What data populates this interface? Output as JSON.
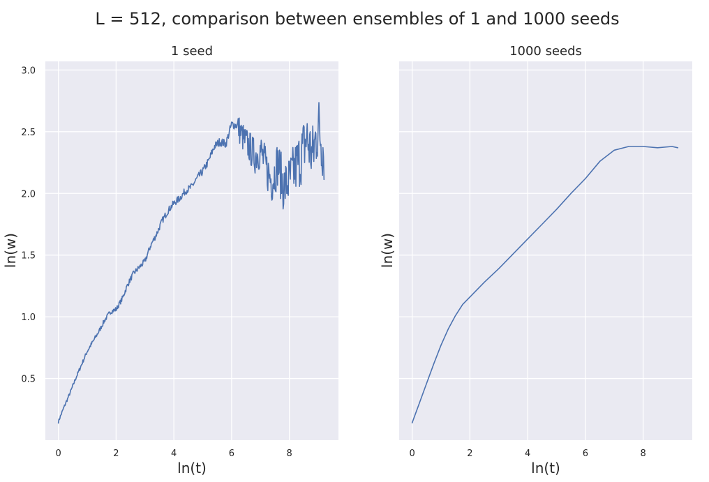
{
  "figure": {
    "title": "L = 512, comparison between ensembles of 1 and 1000 seeds"
  },
  "colors": {
    "background": "#ffffff",
    "plot_background": "#eaeaf2",
    "grid": "#ffffff",
    "line": "#4c72b0",
    "text": "#262626"
  },
  "chart_data": [
    {
      "type": "line",
      "title": "1 seed",
      "xlabel": "ln(t)",
      "ylabel": "ln(w)",
      "xlim": [
        -0.45,
        9.7
      ],
      "ylim": [
        0.0,
        3.07
      ],
      "xticks": [
        0,
        2,
        4,
        6,
        8
      ],
      "xtick_labels": [
        "0",
        "2",
        "4",
        "6",
        "8"
      ],
      "yticks": [
        0.5,
        1.0,
        1.5,
        2.0,
        2.5,
        3.0
      ],
      "ytick_labels": [
        "0.5",
        "1.0",
        "1.5",
        "2.0",
        "2.5",
        "3.0"
      ],
      "grid": true,
      "series": [
        {
          "color": "#4c72b0",
          "noisy": true,
          "x": [
            0.0,
            0.2,
            0.4,
            0.6,
            0.8,
            1.0,
            1.2,
            1.4,
            1.6,
            1.8,
            2.0,
            2.2,
            2.4,
            2.6,
            2.8,
            3.0,
            3.2,
            3.4,
            3.6,
            3.8,
            4.0,
            4.2,
            4.4,
            4.6,
            4.8,
            5.0,
            5.2,
            5.4,
            5.6,
            5.8,
            6.0,
            6.2,
            6.4,
            6.6,
            6.8,
            7.0,
            7.2,
            7.4,
            7.6,
            7.8,
            8.0,
            8.2,
            8.4,
            8.6,
            8.8,
            9.0,
            9.2
          ],
          "y": [
            0.15,
            0.27,
            0.38,
            0.5,
            0.61,
            0.72,
            0.8,
            0.88,
            0.97,
            1.04,
            1.06,
            1.14,
            1.26,
            1.35,
            1.4,
            1.45,
            1.58,
            1.67,
            1.78,
            1.86,
            1.92,
            1.96,
            2.02,
            2.05,
            2.12,
            2.18,
            2.26,
            2.38,
            2.42,
            2.4,
            2.56,
            2.55,
            2.45,
            2.38,
            2.3,
            2.35,
            2.2,
            2.1,
            2.25,
            2.05,
            2.1,
            2.2,
            2.3,
            2.45,
            2.3,
            2.55,
            2.35
          ]
        }
      ]
    },
    {
      "type": "line",
      "title": "1000 seeds",
      "xlabel": "ln(t)",
      "ylabel": "ln(w)",
      "xlim": [
        -0.45,
        9.7
      ],
      "ylim": [
        0.0,
        3.07
      ],
      "xticks": [
        0,
        2,
        4,
        6,
        8
      ],
      "xtick_labels": [
        "0",
        "2",
        "4",
        "6",
        "8"
      ],
      "yticks": [
        0.5,
        1.0,
        1.5,
        2.0,
        2.5,
        3.0
      ],
      "ytick_labels": [],
      "grid": true,
      "series": [
        {
          "color": "#4c72b0",
          "noisy": false,
          "x": [
            0.0,
            0.25,
            0.5,
            0.75,
            1.0,
            1.25,
            1.5,
            1.75,
            2.0,
            2.5,
            3.0,
            3.5,
            4.0,
            4.5,
            5.0,
            5.5,
            6.0,
            6.5,
            7.0,
            7.5,
            8.0,
            8.5,
            9.0,
            9.2
          ],
          "y": [
            0.14,
            0.3,
            0.46,
            0.62,
            0.77,
            0.9,
            1.01,
            1.1,
            1.16,
            1.28,
            1.39,
            1.51,
            1.63,
            1.75,
            1.87,
            2.0,
            2.12,
            2.26,
            2.35,
            2.38,
            2.38,
            2.37,
            2.38,
            2.37
          ]
        }
      ]
    }
  ]
}
